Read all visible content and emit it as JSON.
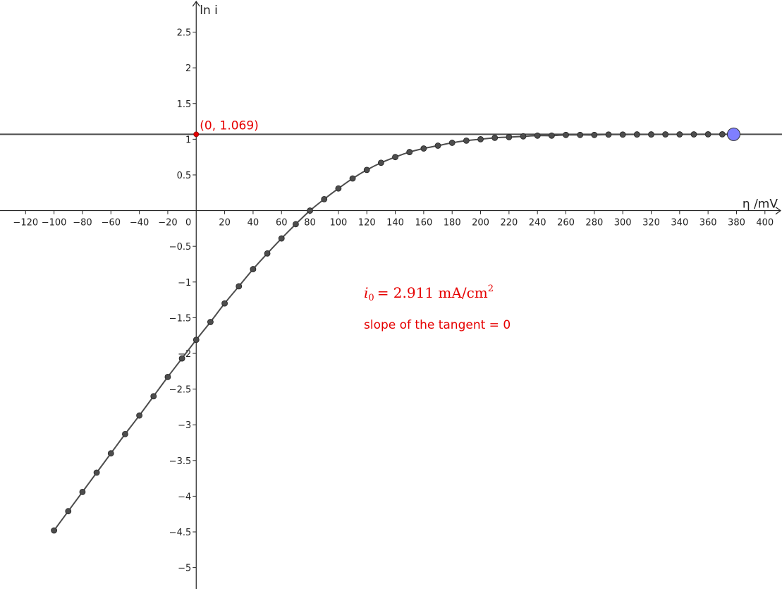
{
  "chart_data": {
    "type": "scatter",
    "xlabel": "η /mV",
    "ylabel": "ln i",
    "xlim": [
      -138,
      412
    ],
    "ylim": [
      -5.3,
      2.95
    ],
    "x_ticks": [
      -120,
      -100,
      -80,
      -60,
      -40,
      -20,
      20,
      40,
      60,
      80,
      100,
      120,
      140,
      160,
      180,
      200,
      220,
      240,
      260,
      280,
      300,
      320,
      340,
      360,
      380,
      400
    ],
    "y_ticks": [
      2.5,
      2,
      1.5,
      1,
      0.5,
      -0.5,
      -1,
      -1.5,
      -2,
      -2.5,
      -3,
      -3.5,
      -4,
      -4.5,
      -5
    ],
    "origin_label": "0",
    "grid": false,
    "series": [
      {
        "role": "data-points",
        "color": "#4d4d4d",
        "x": [
          -100,
          -90,
          -80,
          -70,
          -60,
          -50,
          -40,
          -30,
          -20,
          -10,
          0,
          10,
          20,
          30,
          40,
          50,
          60,
          70,
          80,
          90,
          100,
          110,
          120,
          130,
          140,
          150,
          160,
          170,
          180,
          190,
          200,
          210,
          220,
          230,
          240,
          250,
          260,
          270,
          280,
          290,
          300,
          310,
          320,
          330,
          340,
          350,
          360,
          370
        ],
        "y": [
          -4.48,
          -4.21,
          -3.94,
          -3.67,
          -3.4,
          -3.13,
          -2.87,
          -2.6,
          -2.33,
          -2.07,
          -1.81,
          -1.56,
          -1.3,
          -1.06,
          -0.82,
          -0.6,
          -0.39,
          -0.19,
          0.0,
          0.16,
          0.31,
          0.45,
          0.57,
          0.67,
          0.75,
          0.82,
          0.87,
          0.91,
          0.95,
          0.98,
          1.0,
          1.02,
          1.03,
          1.04,
          1.05,
          1.05,
          1.06,
          1.06,
          1.06,
          1.065,
          1.065,
          1.067,
          1.067,
          1.068,
          1.068,
          1.068,
          1.069,
          1.069
        ]
      }
    ],
    "tangent_line": {
      "y": 1.069,
      "slope": 0,
      "color": "#4d4d4d"
    },
    "tangent_point": {
      "x": 378,
      "y": 1.069,
      "color": "#7f7fff"
    },
    "intercept_point": {
      "x": 0,
      "y": 1.069,
      "color": "#e60000",
      "label": "(0, 1.069)"
    },
    "annotations": {
      "i0_symbol": "i",
      "i0_subscript": "0",
      "i0_value": "= 2.911 mA/cm",
      "i0_superscript": "2",
      "slope_text": "slope of the tangent = 0"
    }
  }
}
